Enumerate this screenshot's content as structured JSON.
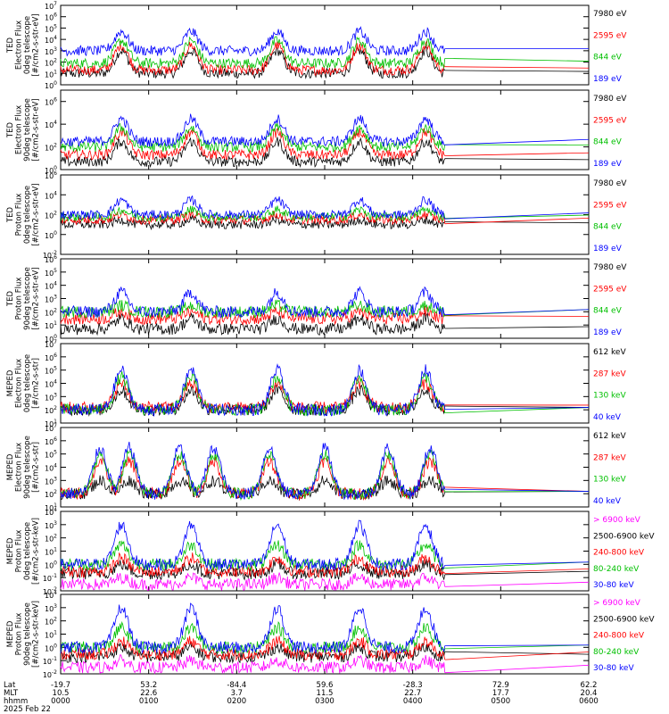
{
  "chart_data": [
    {
      "type": "line",
      "ylabel": [
        "TED",
        "Electron Flux",
        "0deg telescope",
        "[#/cm2-s-str-eV]"
      ],
      "yscale": "log",
      "ylim": [
        1,
        10000000
      ],
      "yticks": [
        [
          "10",
          "0"
        ],
        [
          "10",
          "1"
        ],
        [
          "10",
          "2"
        ],
        [
          "10",
          "3"
        ],
        [
          "10",
          "4"
        ],
        [
          "10",
          "5"
        ],
        [
          "10",
          "6"
        ],
        [
          "10",
          "7"
        ]
      ],
      "series": [
        {
          "name": "7980 eV",
          "color": "#000000",
          "peak": 1000,
          "floor": 10
        },
        {
          "name": "2595 eV",
          "color": "#ff0000",
          "peak": 3000,
          "floor": 20
        },
        {
          "name": "844 eV",
          "color": "#00c000",
          "peak": 8000,
          "floor": 80
        },
        {
          "name": "189 eV",
          "color": "#0000ff",
          "peak": 50000,
          "floor": 1000
        }
      ]
    },
    {
      "type": "line",
      "ylabel": [
        "TED",
        "Electron Flux",
        "90deg telescope",
        "[#/cm2-s-str-eV]"
      ],
      "yscale": "log",
      "ylim": [
        1,
        10000000
      ],
      "yticks": [
        [
          "10",
          "0"
        ],
        [
          "10",
          "2"
        ],
        [
          "10",
          "4"
        ],
        [
          "10",
          "6"
        ]
      ],
      "series": [
        {
          "name": "7980 eV",
          "color": "#000000",
          "peak": 300,
          "floor": 5
        },
        {
          "name": "2595 eV",
          "color": "#ff0000",
          "peak": 2000,
          "floor": 20
        },
        {
          "name": "844 eV",
          "color": "#00c000",
          "peak": 5000,
          "floor": 100
        },
        {
          "name": "189 eV",
          "color": "#0000ff",
          "peak": 30000,
          "floor": 300
        }
      ]
    },
    {
      "type": "line",
      "ylabel": [
        "TED",
        "Proton Flux",
        "0deg telescope",
        "[#/cm2-s-str-eV]"
      ],
      "yscale": "log",
      "ylim": [
        0.01,
        1000000
      ],
      "yticks": [
        [
          "10",
          "-2"
        ],
        [
          "10",
          "0"
        ],
        [
          "10",
          "2"
        ],
        [
          "10",
          "4"
        ],
        [
          "10",
          "6"
        ]
      ],
      "series": [
        {
          "name": "7980 eV",
          "color": "#000000",
          "peak": 30,
          "floor": 10
        },
        {
          "name": "2595 eV",
          "color": "#ff0000",
          "peak": 100,
          "floor": 30
        },
        {
          "name": "844 eV",
          "color": "#00c000",
          "peak": 300,
          "floor": 60
        },
        {
          "name": "189 eV",
          "color": "#0000ff",
          "peak": 3000,
          "floor": 100
        }
      ]
    },
    {
      "type": "line",
      "ylabel": [
        "TED",
        "Proton Flux",
        "90deg telescope",
        "[#/cm2-s-str-eV]"
      ],
      "yscale": "log",
      "ylim": [
        1,
        1000000
      ],
      "yticks": [
        [
          "10",
          "0"
        ],
        [
          "10",
          "1"
        ],
        [
          "10",
          "2"
        ],
        [
          "10",
          "3"
        ],
        [
          "10",
          "4"
        ],
        [
          "10",
          "5"
        ],
        [
          "10",
          "6"
        ]
      ],
      "series": [
        {
          "name": "7980 eV",
          "color": "#000000",
          "peak": 30,
          "floor": 5
        },
        {
          "name": "2595 eV",
          "color": "#ff0000",
          "peak": 100,
          "floor": 30
        },
        {
          "name": "844 eV",
          "color": "#00c000",
          "peak": 300,
          "floor": 100
        },
        {
          "name": "189 eV",
          "color": "#0000ff",
          "peak": 3000,
          "floor": 100
        }
      ]
    },
    {
      "type": "line",
      "ylabel": [
        "MEPED",
        "Electron Flux",
        "0deg telescope",
        "[#/cm2-s-str]"
      ],
      "yscale": "log",
      "ylim": [
        10,
        10000000
      ],
      "yticks": [
        [
          "10",
          "1"
        ],
        [
          "10",
          "2"
        ],
        [
          "10",
          "3"
        ],
        [
          "10",
          "4"
        ],
        [
          "10",
          "5"
        ],
        [
          "10",
          "6"
        ],
        [
          "10",
          "7"
        ]
      ],
      "series": [
        {
          "name": "612 keV",
          "color": "#000000",
          "peak": 3000,
          "floor": 100
        },
        {
          "name": "287 keV",
          "color": "#ff0000",
          "peak": 10000,
          "floor": 150
        },
        {
          "name": "130 keV",
          "color": "#00c000",
          "peak": 30000,
          "floor": 100
        },
        {
          "name": "40 keV",
          "color": "#0000ff",
          "peak": 100000,
          "floor": 100
        }
      ]
    },
    {
      "type": "line",
      "ylabel": [
        "MEPED",
        "Electron Flux",
        "90deg telescope",
        "[#/cm2-s-str]"
      ],
      "yscale": "log",
      "ylim": [
        10,
        10000000
      ],
      "yticks": [
        [
          "10",
          "1"
        ],
        [
          "10",
          "2"
        ],
        [
          "10",
          "3"
        ],
        [
          "10",
          "4"
        ],
        [
          "10",
          "5"
        ],
        [
          "10",
          "6"
        ],
        [
          "10",
          "7"
        ]
      ],
      "series": [
        {
          "name": "612 keV",
          "color": "#000000",
          "peak": 1000,
          "floor": 100
        },
        {
          "name": "287 keV",
          "color": "#ff0000",
          "peak": 30000,
          "floor": 100
        },
        {
          "name": "130 keV",
          "color": "#00c000",
          "peak": 100000,
          "floor": 100
        },
        {
          "name": "40 keV",
          "color": "#0000ff",
          "peak": 300000,
          "floor": 100
        }
      ]
    },
    {
      "type": "line",
      "ylabel": [
        "MEPED",
        "Proton Flux",
        "0deg telescope",
        "[#/cm2-s-str-keV]"
      ],
      "yscale": "log",
      "ylim": [
        0.01,
        10000
      ],
      "yticks": [
        [
          "10",
          "-2"
        ],
        [
          "10",
          "-1"
        ],
        [
          "10",
          "0"
        ],
        [
          "10",
          "1"
        ],
        [
          "10",
          "2"
        ],
        [
          "10",
          "3"
        ],
        [
          "10",
          "4"
        ]
      ],
      "series": [
        {
          "name": "> 6900 keV",
          "color": "#ff00ff",
          "peak": 0.1,
          "floor": 0.03
        },
        {
          "name": "2500-6900 keV",
          "color": "#000000",
          "peak": 1,
          "floor": 0.2
        },
        {
          "name": "240-800 keV",
          "color": "#ff0000",
          "peak": 3,
          "floor": 0.3
        },
        {
          "name": "80-240 keV",
          "color": "#00c000",
          "peak": 30,
          "floor": 1
        },
        {
          "name": "30-80 keV",
          "color": "#0000ff",
          "peak": 1000,
          "floor": 1
        }
      ]
    },
    {
      "type": "line",
      "ylabel": [
        "MEPED",
        "Proton Flux",
        "90deg telescope",
        "[#/cm2-s-str-keV]"
      ],
      "yscale": "log",
      "ylim": [
        0.01,
        10000
      ],
      "yticks": [
        [
          "10",
          "-2"
        ],
        [
          "10",
          "-1"
        ],
        [
          "10",
          "0"
        ],
        [
          "10",
          "1"
        ],
        [
          "10",
          "2"
        ],
        [
          "10",
          "3"
        ],
        [
          "10",
          "4"
        ]
      ],
      "series": [
        {
          "name": "> 6900 keV",
          "color": "#ff00ff",
          "peak": 0.1,
          "floor": 0.03
        },
        {
          "name": "2500-6900 keV",
          "color": "#000000",
          "peak": 1,
          "floor": 0.2
        },
        {
          "name": "240-800 keV",
          "color": "#ff0000",
          "peak": 3,
          "floor": 0.3
        },
        {
          "name": "80-240 keV",
          "color": "#00c000",
          "peak": 30,
          "floor": 1
        },
        {
          "name": "30-80 keV",
          "color": "#0000ff",
          "peak": 1000,
          "floor": 1
        }
      ]
    }
  ],
  "xaxis": {
    "row_labels": [
      "Lat",
      "MLT",
      "hhmm"
    ],
    "columns": [
      {
        "lat": "-19.7",
        "mlt": "10.5",
        "hhmm": "0000"
      },
      {
        "lat": "53.2",
        "mlt": "22.6",
        "hhmm": "0100"
      },
      {
        "lat": "-84.4",
        "mlt": "3.7",
        "hhmm": "0200"
      },
      {
        "lat": "59.6",
        "mlt": "11.5",
        "hhmm": "0300"
      },
      {
        "lat": "-28.3",
        "mlt": "22.7",
        "hhmm": "0400"
      },
      {
        "lat": "72.9",
        "mlt": "17.7",
        "hhmm": "0500"
      },
      {
        "lat": "62.2",
        "mlt": "20.4",
        "hhmm": "0600"
      }
    ],
    "date": "2025 Feb 22"
  }
}
